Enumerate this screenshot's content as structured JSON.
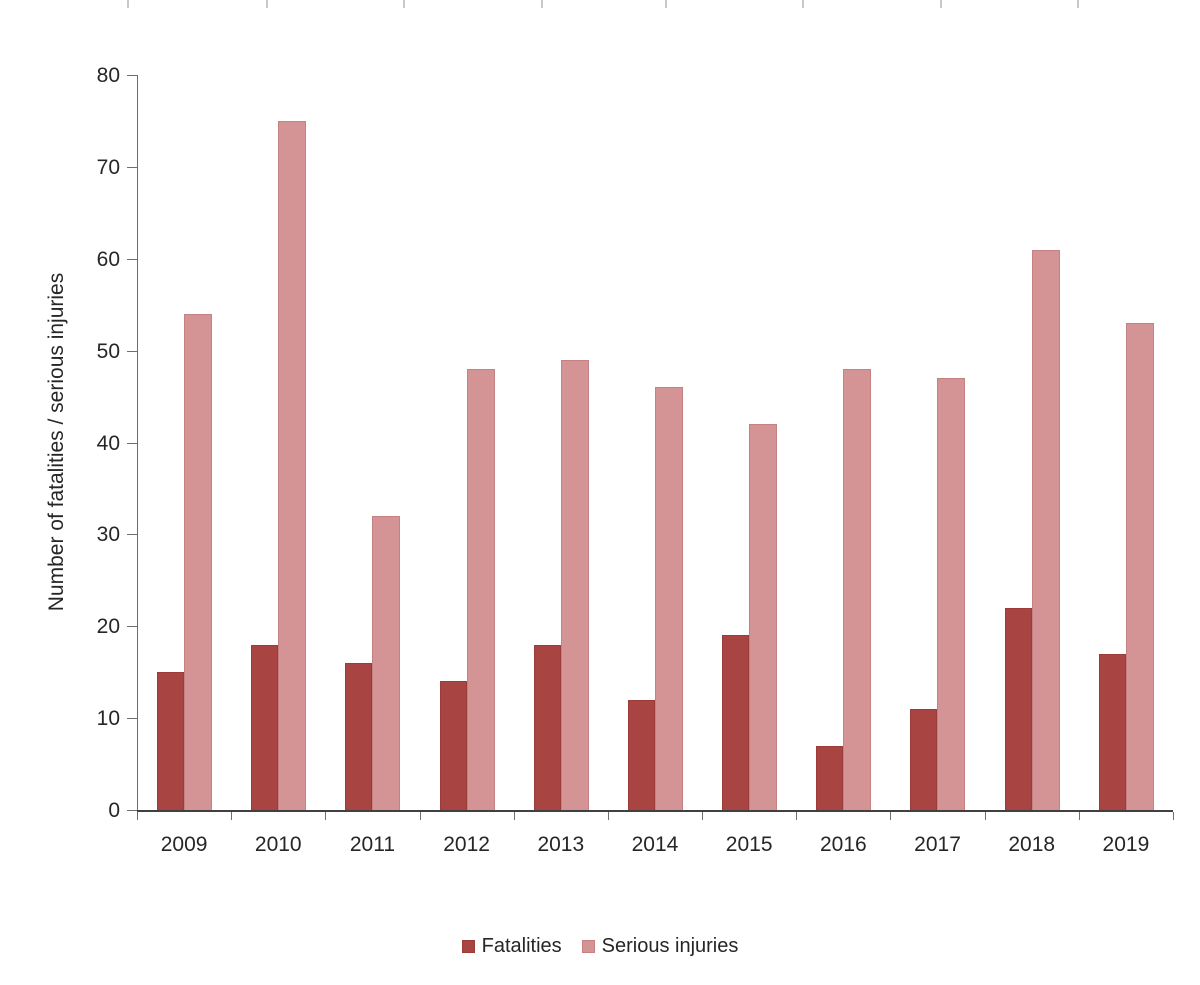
{
  "chart_data": {
    "type": "bar",
    "title": "",
    "categories": [
      "2009",
      "2010",
      "2011",
      "2012",
      "2013",
      "2014",
      "2015",
      "2016",
      "2017",
      "2018",
      "2019"
    ],
    "series": [
      {
        "name": "Fatalities",
        "values": [
          15,
          18,
          16,
          14,
          18,
          12,
          19,
          7,
          11,
          22,
          17
        ],
        "fill": "#a84542",
        "border": "#9c3c39"
      },
      {
        "name": "Serious injuries",
        "values": [
          54,
          75,
          32,
          48,
          49,
          46,
          42,
          48,
          47,
          61,
          53
        ],
        "fill": "#d49495",
        "border": "#c68283"
      }
    ],
    "xlabel": "",
    "ylabel": "Number of fatalities / serious injuries",
    "ylim": [
      0,
      80
    ],
    "yticks": [
      0,
      10,
      20,
      30,
      40,
      50,
      60,
      70,
      80
    ],
    "grid": false,
    "legend_position": "bottom-center"
  },
  "colors": {
    "text": "#262626",
    "axis": "#595959",
    "background": "#ffffff"
  }
}
